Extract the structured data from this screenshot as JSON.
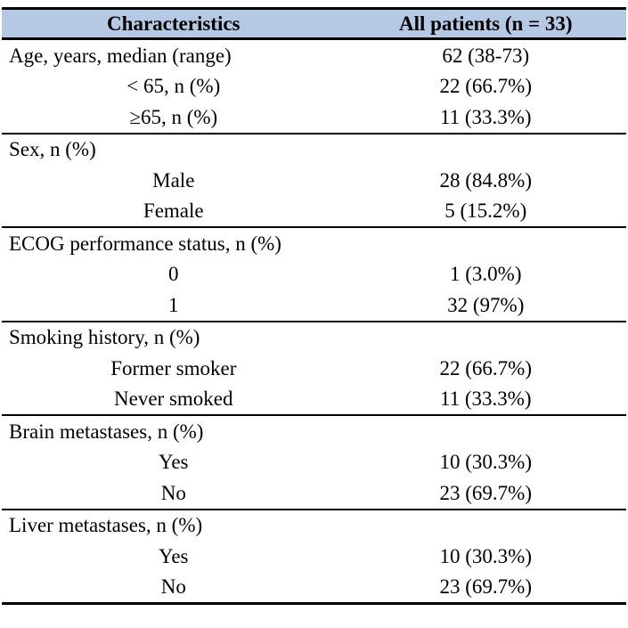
{
  "table": {
    "header_bg": "#b6c9e4",
    "border_color": "#000000",
    "columns": [
      "Characteristics",
      "All patients (n = 33)"
    ],
    "sections": [
      {
        "label": "Age, years, median (range)",
        "value": "62 (38-73)",
        "rows": [
          {
            "label": "< 65, n (%)",
            "value": "22 (66.7%)"
          },
          {
            "label": "≥65, n (%)",
            "value": "11 (33.3%)"
          }
        ]
      },
      {
        "label": "Sex, n (%)",
        "value": "",
        "rows": [
          {
            "label": "Male",
            "value": "28 (84.8%)"
          },
          {
            "label": "Female",
            "value": "5 (15.2%)"
          }
        ]
      },
      {
        "label": "ECOG performance status, n (%)",
        "value": "",
        "rows": [
          {
            "label": "0",
            "value": "1 (3.0%)"
          },
          {
            "label": "1",
            "value": "32 (97%)"
          }
        ]
      },
      {
        "label": "Smoking history, n (%)",
        "value": "",
        "rows": [
          {
            "label": "Former smoker",
            "value": "22 (66.7%)"
          },
          {
            "label": "Never smoked",
            "value": "11 (33.3%)"
          }
        ]
      },
      {
        "label": "Brain metastases, n (%)",
        "value": "",
        "rows": [
          {
            "label": "Yes",
            "value": "10 (30.3%)"
          },
          {
            "label": "No",
            "value": "23 (69.7%)"
          }
        ]
      },
      {
        "label": "Liver metastases, n (%)",
        "value": "",
        "rows": [
          {
            "label": "Yes",
            "value": "10 (30.3%)"
          },
          {
            "label": "No",
            "value": "23 (69.7%)"
          }
        ]
      }
    ]
  }
}
